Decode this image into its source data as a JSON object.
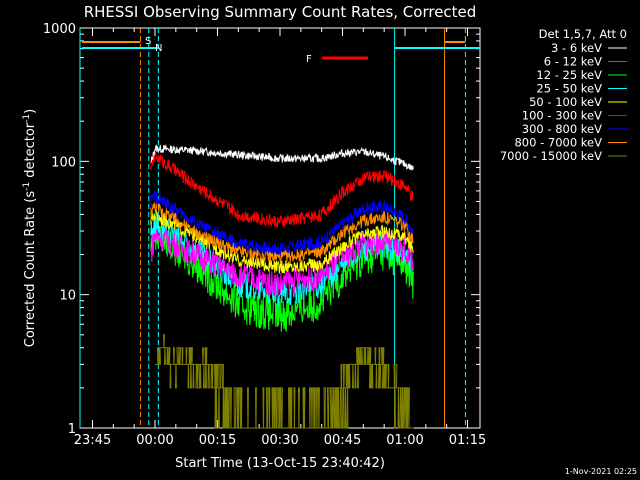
{
  "chart_data": {
    "type": "line",
    "title": "RHESSI Observing Summary Count Rates, Corrected",
    "xlabel": "Start Time (13-Oct-15 23:40:42)",
    "ylabel_main": "Corrected Count Rate (s",
    "ylabel_sup1": "-1",
    "ylabel_mid": " detector",
    "ylabel_sup2": "-1",
    "ylabel_end": ")",
    "y_scale": "log",
    "ylim": [
      1,
      1000
    ],
    "xlim_minutes": [
      -18,
      78
    ],
    "x_ticks": [
      "23:45",
      "00:00",
      "00:15",
      "00:30",
      "00:45",
      "01:00",
      "01:15"
    ],
    "x_tick_minutes": [
      -15,
      0,
      15,
      30,
      45,
      60,
      75
    ],
    "y_ticks": [
      "1",
      "10",
      "100",
      "1000"
    ],
    "y_tick_values": [
      1,
      10,
      100,
      1000
    ],
    "legend_header": "Det 1,5,7, Att 0",
    "legend_position": "right, outside",
    "series": [
      {
        "name": "3 - 6 keV",
        "color": "#ffffff",
        "x": [
          -3,
          -1,
          0,
          10,
          20,
          30,
          40,
          45,
          50,
          55,
          60,
          62
        ],
        "y": [
          null,
          95,
          125,
          120,
          112,
          105,
          105,
          115,
          118,
          108,
          95,
          88
        ]
      },
      {
        "name": "6 - 12 keV",
        "color": "#ff00ff",
        "x": [
          -3,
          -1,
          0,
          10,
          20,
          30,
          40,
          45,
          50,
          55,
          60,
          62
        ],
        "y": [
          null,
          20,
          28,
          20,
          14,
          12,
          14,
          19,
          24,
          25,
          22,
          18
        ]
      },
      {
        "name": "12 - 25 keV",
        "color": "#00ff00",
        "x": [
          -3,
          -1,
          0,
          10,
          20,
          30,
          40,
          45,
          50,
          55,
          60,
          62
        ],
        "y": [
          null,
          22,
          30,
          17,
          8.5,
          7,
          9,
          14,
          19,
          21,
          17,
          12
        ]
      },
      {
        "name": "25 - 50 keV",
        "color": "#00ffff",
        "x": [
          -3,
          -1,
          0,
          10,
          20,
          30,
          40,
          45,
          50,
          55,
          60,
          62
        ],
        "y": [
          null,
          30,
          34,
          21,
          12,
          10,
          12,
          17,
          22,
          24,
          20,
          15
        ]
      },
      {
        "name": "50 - 100 keV",
        "color": "#ffff00",
        "x": [
          -3,
          -1,
          0,
          10,
          20,
          30,
          40,
          45,
          50,
          55,
          60,
          62
        ],
        "y": [
          null,
          36,
          40,
          27,
          18,
          16,
          17,
          23,
          28,
          30,
          27,
          22
        ]
      },
      {
        "name": "100 - 300 keV",
        "color": "#ff0000",
        "x": [
          -3,
          -1,
          0,
          10,
          20,
          30,
          40,
          45,
          50,
          55,
          60,
          62
        ],
        "y": [
          null,
          95,
          110,
          65,
          40,
          35,
          40,
          58,
          75,
          78,
          65,
          52
        ]
      },
      {
        "name": "300 - 800 keV",
        "color": "#0000ff",
        "x": [
          -3,
          -1,
          0,
          10,
          20,
          30,
          40,
          45,
          50,
          55,
          60,
          62
        ],
        "y": [
          null,
          50,
          55,
          34,
          24,
          22,
          25,
          34,
          44,
          46,
          38,
          30
        ]
      },
      {
        "name": "800 - 7000 keV",
        "color": "#ff8c00",
        "x": [
          -3,
          -1,
          0,
          10,
          20,
          30,
          40,
          45,
          50,
          55,
          60,
          62
        ],
        "y": [
          null,
          42,
          46,
          29,
          21,
          19,
          21,
          29,
          36,
          38,
          33,
          26
        ]
      },
      {
        "name": "7000 - 15000 keV",
        "color": "#808000",
        "x": [
          0,
          2,
          4,
          6,
          8,
          10,
          12,
          14,
          16,
          18,
          20,
          22,
          24,
          26,
          28,
          30,
          32,
          34,
          36,
          38,
          40,
          42,
          44,
          46,
          48,
          50,
          52,
          54,
          56,
          58,
          60,
          62
        ],
        "y": [
          3,
          4,
          3,
          3.5,
          3,
          2.5,
          3,
          2,
          2,
          1.5,
          1.2,
          1,
          1,
          1,
          1,
          1,
          1,
          1,
          1,
          1,
          1,
          1.3,
          1.6,
          2.2,
          3,
          3.5,
          3,
          3,
          2.5,
          2,
          1.5,
          1
        ]
      }
    ],
    "annotations": [
      {
        "label": "S",
        "color": "#ff8c00"
      },
      {
        "label": "N",
        "color": "#00ffff"
      },
      {
        "label": "F",
        "color": "#ff0000"
      }
    ],
    "stamp": "1-Nov-2021 02:25"
  }
}
